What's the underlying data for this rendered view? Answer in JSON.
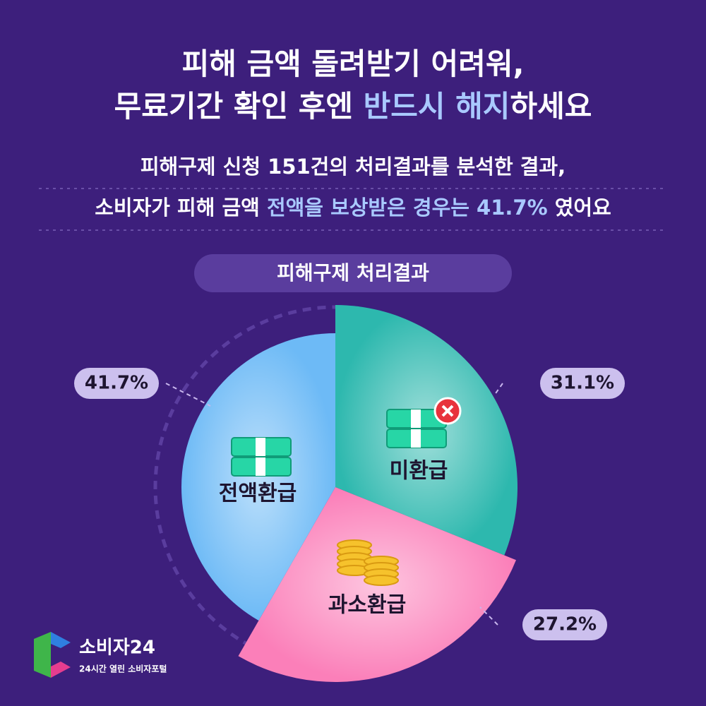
{
  "chart_data": {
    "type": "pie",
    "title": [
      [
        "피해 금액 돌려받기 어려워,"
      ],
      [
        "무료기간 확인 후엔 ",
        "반드시 해지",
        "하세요"
      ]
    ],
    "subtitle": [
      [
        "피해구제 신청 151건의 처리결과를 분석한 결과,"
      ],
      [
        "소비자가 피해 금액 ",
        "전액을 보상받은 경우는 41.7%",
        " 였어요"
      ]
    ],
    "chart_label": "피해구제 처리결과",
    "categories": [
      "미환급",
      "과소환급",
      "전액환급"
    ],
    "values": [
      31.1,
      27.2,
      41.7
    ],
    "value_labels": [
      "31.1%",
      "27.2%",
      "41.7%"
    ],
    "colors": [
      "#2db8ae",
      "#fb7fb9",
      "#6dbaf6"
    ]
  },
  "logo": {
    "name": "소비자24",
    "tagline": "24시간 열린 소비자포털"
  }
}
